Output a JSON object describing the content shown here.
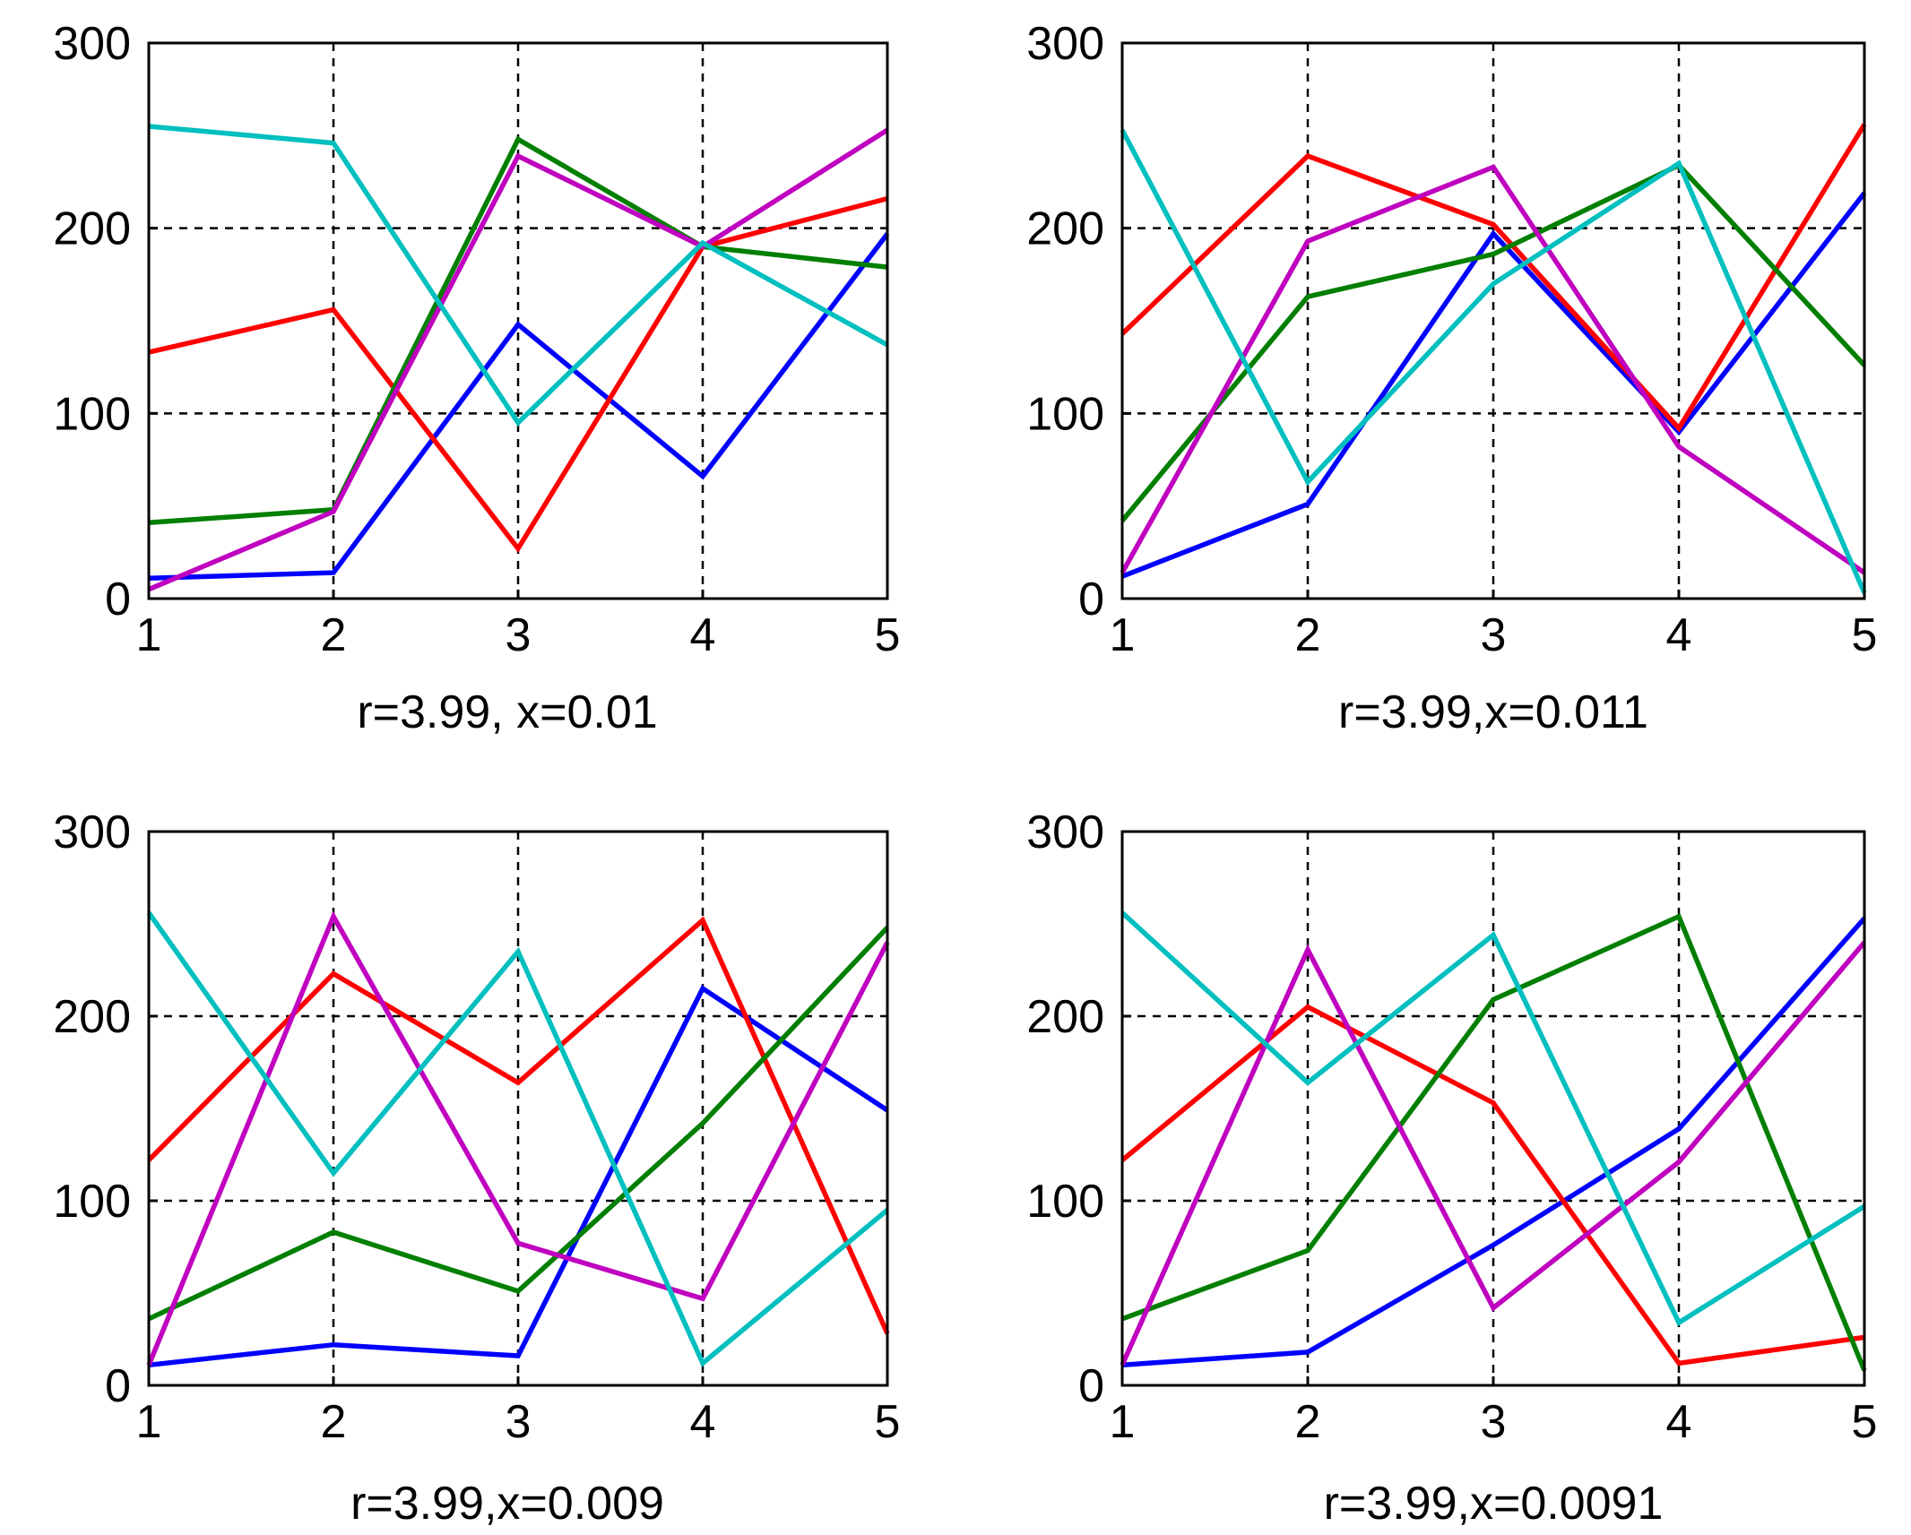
{
  "figure": {
    "background": "#ffffff",
    "axis_color": "#000000",
    "grid_color": "#000000"
  },
  "series_colors": {
    "blue": "#0000ff",
    "red": "#ff0000",
    "green": "#007f00",
    "magenta": "#bf00bf",
    "cyan": "#00bfbf"
  },
  "chart_data": [
    {
      "type": "line",
      "xlabel": "r=3.99, x=0.01",
      "ylabel": "",
      "x": [
        1,
        2,
        3,
        4,
        5
      ],
      "xticks": [
        "1",
        "2",
        "3",
        "4",
        "5"
      ],
      "yticks": [
        "0",
        "100",
        "200",
        "300"
      ],
      "xlim": [
        1,
        5
      ],
      "ylim": [
        0,
        300
      ],
      "grid": true,
      "series": [
        {
          "name": "blue",
          "color": "#0000ff",
          "values": [
            11,
            14,
            148,
            66,
            197
          ]
        },
        {
          "name": "red",
          "color": "#ff0000",
          "values": [
            133,
            156,
            27,
            190,
            216
          ]
        },
        {
          "name": "green",
          "color": "#007f00",
          "values": [
            41,
            48,
            248,
            190,
            179
          ]
        },
        {
          "name": "magenta",
          "color": "#bf00bf",
          "values": [
            5,
            47,
            239,
            190,
            253
          ]
        },
        {
          "name": "cyan",
          "color": "#00bfbf",
          "values": [
            255,
            246,
            95,
            192,
            137
          ]
        }
      ]
    },
    {
      "type": "line",
      "xlabel": "r=3.99,x=0.011",
      "ylabel": "",
      "x": [
        1,
        2,
        3,
        4,
        5
      ],
      "xticks": [
        "1",
        "2",
        "3",
        "4",
        "5"
      ],
      "yticks": [
        "0",
        "100",
        "200",
        "300"
      ],
      "xlim": [
        1,
        5
      ],
      "ylim": [
        0,
        300
      ],
      "grid": true,
      "series": [
        {
          "name": "blue",
          "color": "#0000ff",
          "values": [
            12,
            51,
            197,
            90,
            219
          ]
        },
        {
          "name": "red",
          "color": "#ff0000",
          "values": [
            143,
            239,
            202,
            92,
            256
          ]
        },
        {
          "name": "green",
          "color": "#007f00",
          "values": [
            42,
            163,
            186,
            234,
            126
          ]
        },
        {
          "name": "magenta",
          "color": "#bf00bf",
          "values": [
            14,
            193,
            233,
            82,
            14
          ]
        },
        {
          "name": "cyan",
          "color": "#00bfbf",
          "values": [
            253,
            63,
            170,
            235,
            3
          ]
        }
      ]
    },
    {
      "type": "line",
      "xlabel": "r=3.99,x=0.009",
      "ylabel": "",
      "x": [
        1,
        2,
        3,
        4,
        5
      ],
      "xticks": [
        "1",
        "2",
        "3",
        "4",
        "5"
      ],
      "yticks": [
        "0",
        "100",
        "200",
        "300"
      ],
      "xlim": [
        1,
        5
      ],
      "ylim": [
        0,
        300
      ],
      "grid": true,
      "series": [
        {
          "name": "blue",
          "color": "#0000ff",
          "values": [
            11,
            22,
            16,
            215,
            149
          ]
        },
        {
          "name": "red",
          "color": "#ff0000",
          "values": [
            122,
            223,
            164,
            252,
            28
          ]
        },
        {
          "name": "green",
          "color": "#007f00",
          "values": [
            36,
            83,
            51,
            142,
            248
          ]
        },
        {
          "name": "magenta",
          "color": "#bf00bf",
          "values": [
            11,
            254,
            77,
            47,
            240
          ]
        },
        {
          "name": "cyan",
          "color": "#00bfbf",
          "values": [
            256,
            115,
            235,
            12,
            95
          ]
        }
      ]
    },
    {
      "type": "line",
      "xlabel": "r=3.99,x=0.0091",
      "ylabel": "",
      "x": [
        1,
        2,
        3,
        4,
        5
      ],
      "xticks": [
        "1",
        "2",
        "3",
        "4",
        "5"
      ],
      "yticks": [
        "0",
        "100",
        "200",
        "300"
      ],
      "xlim": [
        1,
        5
      ],
      "ylim": [
        0,
        300
      ],
      "grid": true,
      "series": [
        {
          "name": "blue",
          "color": "#0000ff",
          "values": [
            11,
            18,
            76,
            139,
            253
          ]
        },
        {
          "name": "red",
          "color": "#ff0000",
          "values": [
            122,
            205,
            153,
            12,
            26
          ]
        },
        {
          "name": "green",
          "color": "#007f00",
          "values": [
            36,
            73,
            209,
            254,
            8
          ]
        },
        {
          "name": "magenta",
          "color": "#bf00bf",
          "values": [
            11,
            236,
            42,
            121,
            240
          ]
        },
        {
          "name": "cyan",
          "color": "#00bfbf",
          "values": [
            256,
            164,
            244,
            34,
            97
          ]
        }
      ]
    }
  ]
}
